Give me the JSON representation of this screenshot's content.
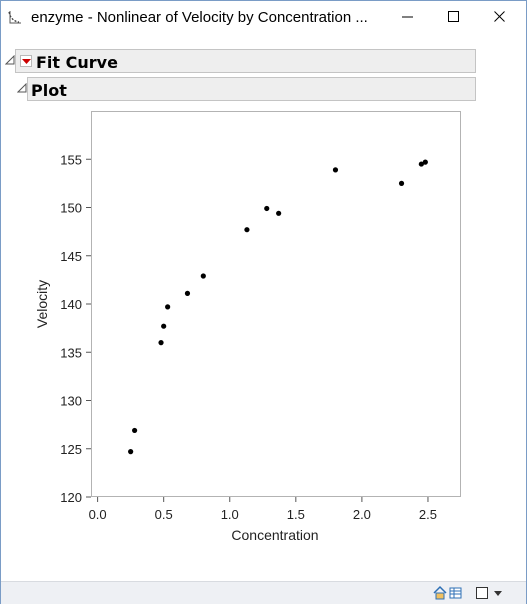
{
  "window": {
    "title": "enzyme - Nonlinear of Velocity by Concentration ...",
    "icon": "jmp-script-icon"
  },
  "outline": {
    "fit_curve": {
      "title": "Fit Curve",
      "menu_color": "#cc0000"
    },
    "plot": {
      "title": "Plot"
    }
  },
  "chart_data": {
    "type": "scatter",
    "xlabel": "Concentration",
    "ylabel": "Velocity",
    "xlim": [
      -0.05,
      2.75
    ],
    "ylim": [
      120,
      160
    ],
    "xticks": [
      0.0,
      0.5,
      1.0,
      1.5,
      2.0,
      2.5
    ],
    "xtick_labels": [
      "0.0",
      "0.5",
      "1.0",
      "1.5",
      "2.0",
      "2.5"
    ],
    "yticks": [
      120,
      125,
      130,
      135,
      140,
      145,
      150,
      155
    ],
    "ytick_labels": [
      "120",
      "125",
      "130",
      "135",
      "140",
      "145",
      "150",
      "155"
    ],
    "grid": false,
    "marker_color": "#000000",
    "series": [
      {
        "points": [
          {
            "x": 0.25,
            "y": 124.7
          },
          {
            "x": 0.28,
            "y": 126.9
          },
          {
            "x": 0.48,
            "y": 136.0
          },
          {
            "x": 0.5,
            "y": 137.7
          },
          {
            "x": 0.53,
            "y": 139.7
          },
          {
            "x": 0.68,
            "y": 141.1
          },
          {
            "x": 0.8,
            "y": 142.9
          },
          {
            "x": 1.13,
            "y": 147.7
          },
          {
            "x": 1.28,
            "y": 149.9
          },
          {
            "x": 1.37,
            "y": 149.4
          },
          {
            "x": 1.8,
            "y": 153.9
          },
          {
            "x": 2.3,
            "y": 152.5
          },
          {
            "x": 2.45,
            "y": 154.5
          },
          {
            "x": 2.48,
            "y": 154.7
          }
        ]
      }
    ]
  },
  "statusbar": {
    "icons": [
      "home-icon",
      "table-icon",
      "checkbox-icon",
      "dropdown-arrow-icon"
    ]
  }
}
